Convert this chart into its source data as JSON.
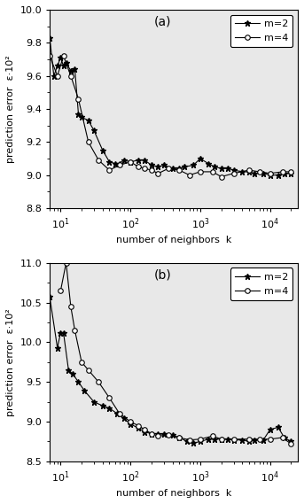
{
  "panel_a": {
    "label": "(a)",
    "xlabel": "number of neighbors  k",
    "ylabel": "prediction error  ε·10²",
    "ylim": [
      8.8,
      10.0
    ],
    "yticks": [
      8.8,
      9.0,
      9.2,
      9.4,
      9.6,
      9.8,
      10.0
    ],
    "xlim_log": [
      7,
      25000
    ],
    "m2_k": [
      7,
      8,
      9,
      10,
      11,
      12,
      14,
      16,
      18,
      20,
      25,
      30,
      40,
      50,
      60,
      70,
      80,
      100,
      130,
      160,
      200,
      250,
      300,
      400,
      500,
      600,
      800,
      1000,
      1300,
      1600,
      2000,
      2500,
      3000,
      4000,
      5000,
      6000,
      8000,
      10000,
      13000,
      16000,
      20000
    ],
    "m2_y": [
      9.83,
      9.6,
      9.66,
      9.71,
      9.66,
      9.68,
      9.63,
      9.64,
      9.37,
      9.35,
      9.33,
      9.27,
      9.15,
      9.08,
      9.07,
      9.07,
      9.09,
      9.08,
      9.09,
      9.09,
      9.06,
      9.05,
      9.06,
      9.04,
      9.04,
      9.05,
      9.06,
      9.1,
      9.07,
      9.05,
      9.04,
      9.04,
      9.03,
      9.02,
      9.02,
      9.01,
      9.01,
      9.0,
      9.0,
      9.01,
      9.01
    ],
    "m4_k": [
      7,
      9,
      11,
      14,
      18,
      25,
      35,
      50,
      70,
      100,
      130,
      160,
      200,
      250,
      350,
      500,
      700,
      1000,
      1500,
      2000,
      3000,
      5000,
      7000,
      10000,
      15000,
      20000
    ],
    "m4_y": [
      9.72,
      9.6,
      9.72,
      9.6,
      9.46,
      9.2,
      9.09,
      9.03,
      9.06,
      9.08,
      9.05,
      9.04,
      9.03,
      9.01,
      9.04,
      9.03,
      9.0,
      9.02,
      9.02,
      8.99,
      9.01,
      9.03,
      9.02,
      9.01,
      9.02,
      9.02
    ]
  },
  "panel_b": {
    "label": "(b)",
    "xlabel": "number of neighbors  k",
    "ylabel": "prediction error  ε·10²",
    "ylim": [
      8.5,
      11.0
    ],
    "yticks": [
      8.5,
      9.0,
      9.5,
      10.0,
      10.5,
      11.0
    ],
    "xlim_log": [
      7,
      25000
    ],
    "m2_k": [
      7,
      9,
      10,
      11,
      13,
      15,
      18,
      22,
      30,
      40,
      50,
      65,
      80,
      100,
      130,
      160,
      200,
      250,
      300,
      400,
      500,
      650,
      800,
      1000,
      1300,
      1600,
      2000,
      2500,
      3000,
      4000,
      5000,
      6000,
      8000,
      10000,
      13000,
      16000,
      20000
    ],
    "m2_y": [
      10.57,
      9.93,
      10.12,
      10.12,
      9.65,
      9.6,
      9.5,
      9.39,
      9.25,
      9.2,
      9.17,
      9.1,
      9.04,
      8.97,
      8.92,
      8.87,
      8.85,
      8.85,
      8.84,
      8.83,
      8.8,
      8.75,
      8.73,
      8.75,
      8.78,
      8.78,
      8.78,
      8.78,
      8.77,
      8.77,
      8.75,
      8.77,
      8.77,
      8.9,
      8.93,
      8.8,
      8.75
    ],
    "m4_k": [
      10,
      12,
      14,
      16,
      20,
      25,
      35,
      50,
      70,
      100,
      130,
      160,
      200,
      250,
      350,
      500,
      700,
      1000,
      1500,
      2000,
      3000,
      5000,
      7000,
      10000,
      15000,
      20000
    ],
    "m4_y": [
      10.65,
      11.0,
      10.45,
      10.15,
      9.75,
      9.65,
      9.5,
      9.3,
      9.1,
      9.0,
      8.95,
      8.9,
      8.85,
      8.82,
      8.83,
      8.8,
      8.77,
      8.78,
      8.82,
      8.78,
      8.78,
      8.78,
      8.78,
      8.78,
      8.8,
      8.72
    ]
  },
  "line_color": "#000000",
  "m2_marker": "*",
  "m4_marker": "o",
  "m2_label": "m=2",
  "m4_label": "m=4",
  "marker_size_star": 5,
  "marker_size_circle": 4,
  "bg_color": "#ffffff",
  "plot_bg_color": "#e8e8e8"
}
